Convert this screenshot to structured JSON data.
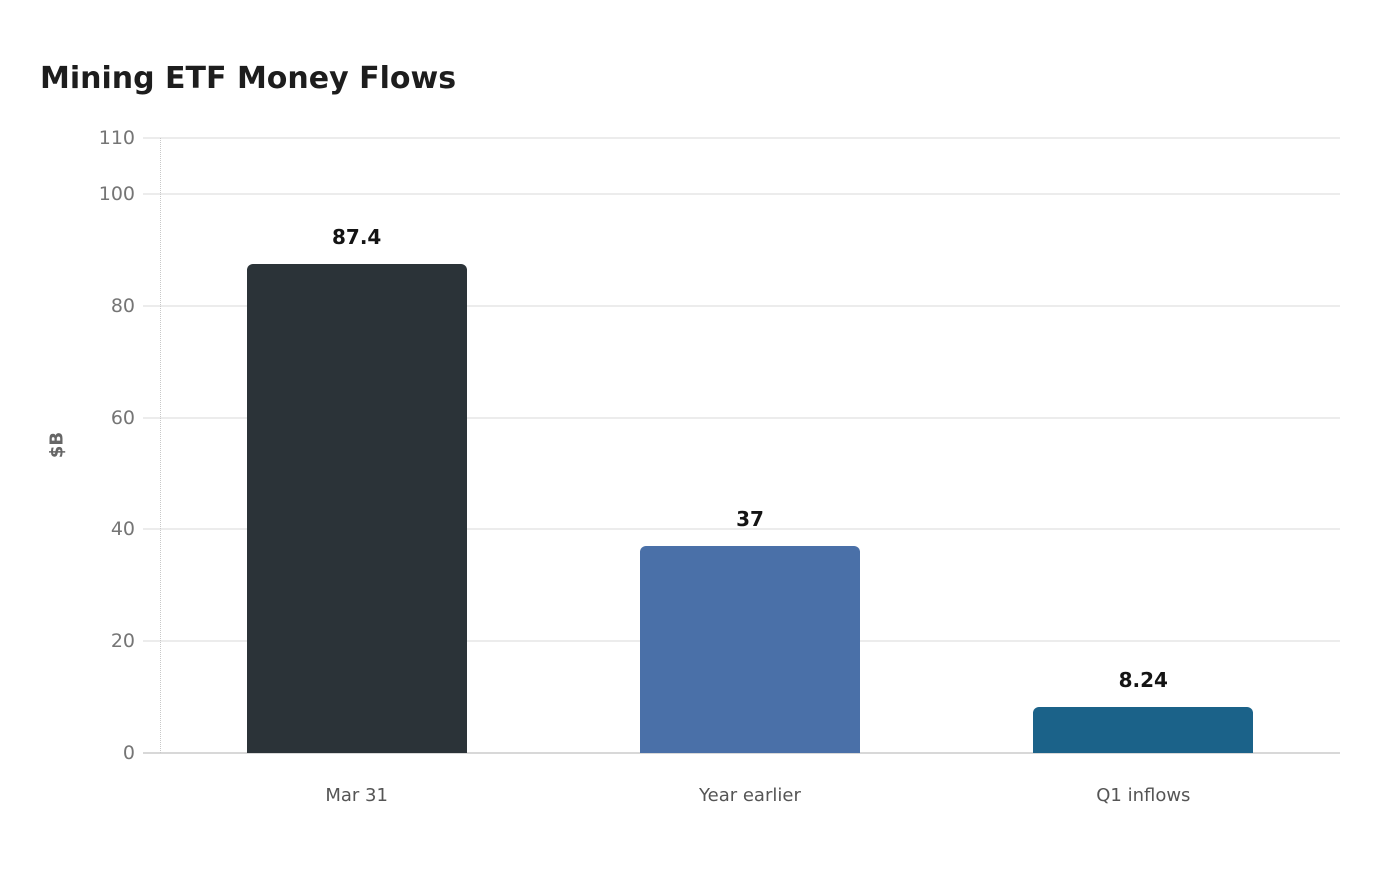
{
  "chart_data": {
    "type": "bar",
    "title": "Mining ETF Money Flows",
    "xlabel": "",
    "ylabel": "$B",
    "categories": [
      "Mar 31",
      "Year earlier",
      "Q1 inflows"
    ],
    "values": [
      87.4,
      37,
      8.24
    ],
    "data_labels": [
      "87.4",
      "37",
      "8.24"
    ],
    "bar_colors": [
      "#2b3338",
      "#4a70a8",
      "#1b6289"
    ],
    "yticks": [
      0,
      20,
      40,
      60,
      80,
      100,
      110
    ],
    "ylim": [
      0,
      110
    ],
    "grid": "horizontal",
    "legend": false,
    "colors": {
      "gridline": "#ececec",
      "baseline": "#d8d8d8",
      "dotted_axis": "#c8c8c8",
      "tick_text": "#757575",
      "category_text": "#555555",
      "value_text": "#141414",
      "title_text": "#1d1d1d",
      "background": "#ffffff"
    }
  }
}
